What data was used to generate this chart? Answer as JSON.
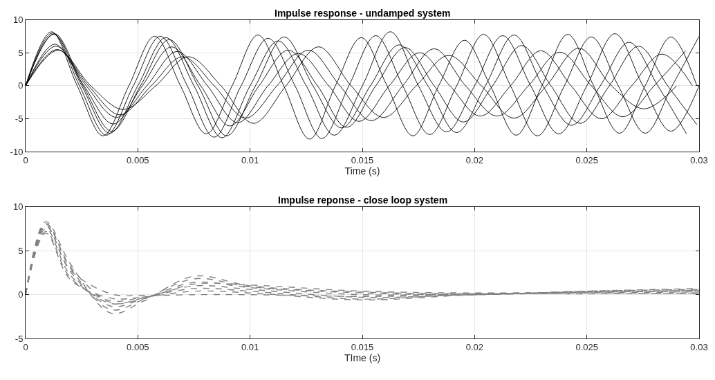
{
  "chart_data": [
    {
      "type": "line",
      "title": "Impulse response - undamped system",
      "xlabel": "Time (s)",
      "xlim": [
        0,
        0.03
      ],
      "xticks": [
        0,
        0.005,
        0.01,
        0.015,
        0.02,
        0.025,
        0.03
      ],
      "ylim": [
        -10,
        10
      ],
      "yticks": [
        -10,
        -5,
        0,
        5,
        10
      ],
      "grid": true,
      "line_style": "solid",
      "series": [
        {
          "color": "#000000",
          "x": [
            0,
            0.0012,
            0.0024,
            0.0036,
            0.0048,
            0.006,
            0.0072,
            0.0084,
            0.0096,
            0.0108,
            0.012,
            0.0132,
            0.0144,
            0.0156,
            0.0168,
            0.018,
            0.0192,
            0.0204,
            0.0216,
            0.0228,
            0.024,
            0.0252,
            0.0264,
            0.0276,
            0.0288,
            0.03
          ],
          "values": [
            0,
            8,
            0,
            -7.5,
            0,
            7.5,
            0,
            -7.8,
            0,
            7.2,
            0,
            -8,
            0,
            7.6,
            0,
            -7.4,
            0,
            7.8,
            0,
            -7.6,
            0,
            7.4,
            0,
            -7.2,
            0,
            7.5
          ]
        },
        {
          "color": "#000000",
          "x": [
            0,
            0.00125,
            0.0025,
            0.00375,
            0.005,
            0.00625,
            0.0075,
            0.00875,
            0.01,
            0.01125,
            0.0125,
            0.01375,
            0.015,
            0.01625,
            0.0175,
            0.01875,
            0.02,
            0.02125,
            0.0225,
            0.02375,
            0.025,
            0.02625,
            0.0275,
            0.02875,
            0.03
          ],
          "values": [
            0,
            7.8,
            0,
            -7.2,
            0,
            7.3,
            0,
            -7.9,
            0,
            6.8,
            0,
            -7.5,
            0,
            8.2,
            0,
            -7,
            0,
            7.6,
            0,
            -7.3,
            0,
            7.9,
            0,
            -6.9,
            0
          ]
        },
        {
          "color": "#000000",
          "x": [
            0,
            0.0013,
            0.0026,
            0.0039,
            0.0052,
            0.0065,
            0.0078,
            0.0091,
            0.0104,
            0.0117,
            0.013,
            0.0143,
            0.0156,
            0.0169,
            0.0182,
            0.0195,
            0.0208,
            0.0221,
            0.0234,
            0.0247,
            0.026,
            0.0273,
            0.0286,
            0.0299
          ],
          "values": [
            0,
            6.3,
            0,
            -5.8,
            0,
            5.9,
            0,
            -6.1,
            0,
            5.4,
            0,
            -6.3,
            0,
            5.8,
            0,
            -5.5,
            0,
            6.1,
            0,
            -5.7,
            0,
            6,
            0,
            -5.9
          ]
        },
        {
          "color": "#000000",
          "x": [
            0,
            0.00135,
            0.0027,
            0.00405,
            0.0054,
            0.00675,
            0.0081,
            0.00945,
            0.0108,
            0.01215,
            0.0135,
            0.01485,
            0.0162,
            0.01755,
            0.0189,
            0.02025,
            0.0216,
            0.02295,
            0.0243,
            0.02565,
            0.027,
            0.02835,
            0.0297
          ],
          "values": [
            0,
            6,
            0,
            -4.8,
            0,
            5.2,
            0,
            -5.6,
            0,
            4.9,
            0,
            -5.4,
            0,
            5,
            0,
            -4.6,
            0,
            5.3,
            0,
            -5,
            0,
            4.8,
            0
          ]
        },
        {
          "color": "#000000",
          "x": [
            0,
            0.0014,
            0.0028,
            0.0042,
            0.0056,
            0.007,
            0.0084,
            0.0098,
            0.0112,
            0.0126,
            0.014,
            0.0154,
            0.0168,
            0.0182,
            0.0196,
            0.021,
            0.0224,
            0.0238,
            0.0252,
            0.0266,
            0.028,
            0.0294
          ],
          "values": [
            0,
            5.5,
            0,
            -4.4,
            0,
            4.4,
            0,
            -4.9,
            0,
            5.4,
            0,
            -5.3,
            0,
            5.6,
            0,
            -4.6,
            0,
            5.1,
            0,
            -4.7,
            0,
            5.3
          ]
        },
        {
          "color": "#000000",
          "x": [
            0,
            0.00115,
            0.0023,
            0.00345,
            0.0046,
            0.00575,
            0.0069,
            0.00805,
            0.0092,
            0.01035,
            0.0115,
            0.01265,
            0.0138,
            0.01495,
            0.0161,
            0.01725,
            0.0184,
            0.01955,
            0.0207,
            0.02185,
            0.023,
            0.02415,
            0.0253,
            0.02645,
            0.0276,
            0.02875,
            0.0299
          ],
          "values": [
            0,
            8.2,
            0,
            -7.6,
            0,
            7.5,
            0,
            -7.3,
            0,
            7.7,
            0,
            -8.1,
            0,
            7.3,
            0,
            -7.6,
            0,
            6.9,
            0,
            -7.5,
            0,
            7.8,
            0,
            -7.2,
            0,
            7.4,
            0
          ]
        },
        {
          "color": "#000000",
          "x": [
            0,
            0.00145,
            0.0029,
            0.00435,
            0.0058,
            0.00725,
            0.0087,
            0.01015,
            0.0116,
            0.01305,
            0.0145,
            0.01595,
            0.0174,
            0.01885,
            0.0203,
            0.02175,
            0.0232,
            0.02465,
            0.0261,
            0.02755,
            0.029
          ],
          "values": [
            0,
            5.4,
            0,
            -3.6,
            0,
            4.4,
            0,
            -5.7,
            0,
            5.9,
            0,
            -4.8,
            0,
            4.6,
            0,
            -4.9,
            0,
            5.7,
            0,
            -3.5,
            0
          ]
        },
        {
          "color": "#000000",
          "x": [
            0,
            0.00128,
            0.00256,
            0.00384,
            0.00512,
            0.0064,
            0.00768,
            0.00896,
            0.01024,
            0.01152,
            0.0128,
            0.01408,
            0.01536,
            0.01664,
            0.01792,
            0.0192,
            0.02048,
            0.02176,
            0.02304,
            0.02432,
            0.0256,
            0.02688,
            0.02816,
            0.02944
          ],
          "values": [
            0,
            7.9,
            0,
            -6.9,
            0,
            7,
            0,
            -7.6,
            0,
            7.4,
            0,
            -6.4,
            0,
            6.2,
            0,
            -7.1,
            0,
            7.7,
            0,
            -6,
            0,
            6.6,
            0,
            -7.3
          ]
        }
      ]
    },
    {
      "type": "line",
      "title": "Impulse reponse - close loop system",
      "xlabel": "TIme (s)",
      "xlim": [
        0,
        0.03
      ],
      "xticks": [
        0,
        0.005,
        0.01,
        0.015,
        0.02,
        0.025,
        0.03
      ],
      "ylim": [
        -5,
        10
      ],
      "yticks": [
        -5,
        0,
        5,
        10
      ],
      "grid": true,
      "line_style": "dashed",
      "x": [
        0,
        0.0009,
        0.002,
        0.0038,
        0.0052,
        0.0075,
        0.01,
        0.015,
        0.02,
        0.025,
        0.03
      ],
      "series": [
        {
          "color": "#808080",
          "values": [
            0,
            8.3,
            3.5,
            -2.1,
            -0.8,
            2.1,
            1,
            0.3,
            0.1,
            0.3,
            0.5
          ]
        },
        {
          "color": "#808080",
          "values": [
            0,
            8,
            3,
            -1.7,
            -0.6,
            1.8,
            0.9,
            0.2,
            0,
            0.4,
            0.6
          ]
        },
        {
          "color": "#808080",
          "values": [
            0,
            7.8,
            2.6,
            -1.3,
            -0.5,
            1.4,
            0.8,
            0,
            0.1,
            0.3,
            0.4
          ]
        },
        {
          "color": "#808080",
          "values": [
            0,
            7.5,
            2.2,
            -1,
            -0.4,
            1,
            0.6,
            -0.3,
            0,
            0.2,
            0.3
          ]
        },
        {
          "color": "#808080",
          "values": [
            0,
            7.2,
            1.9,
            -0.7,
            -0.3,
            0.7,
            0.4,
            -0.5,
            0.1,
            0.1,
            0.2
          ]
        },
        {
          "color": "#808080",
          "values": [
            0,
            7,
            1.7,
            -0.4,
            -0.3,
            0.4,
            0.2,
            -0.6,
            0,
            0.2,
            0.1
          ]
        },
        {
          "color": "#808080",
          "values": [
            0,
            7.8,
            2.8,
            0.1,
            -0.1,
            0,
            0,
            -0.2,
            0,
            0.4,
            0.7
          ]
        },
        {
          "color": "#808080",
          "values": [
            0,
            8.1,
            3.2,
            -0.9,
            -0.5,
            1.2,
            1.1,
            0.4,
            0.2,
            0.3,
            0.5
          ]
        }
      ]
    }
  ]
}
